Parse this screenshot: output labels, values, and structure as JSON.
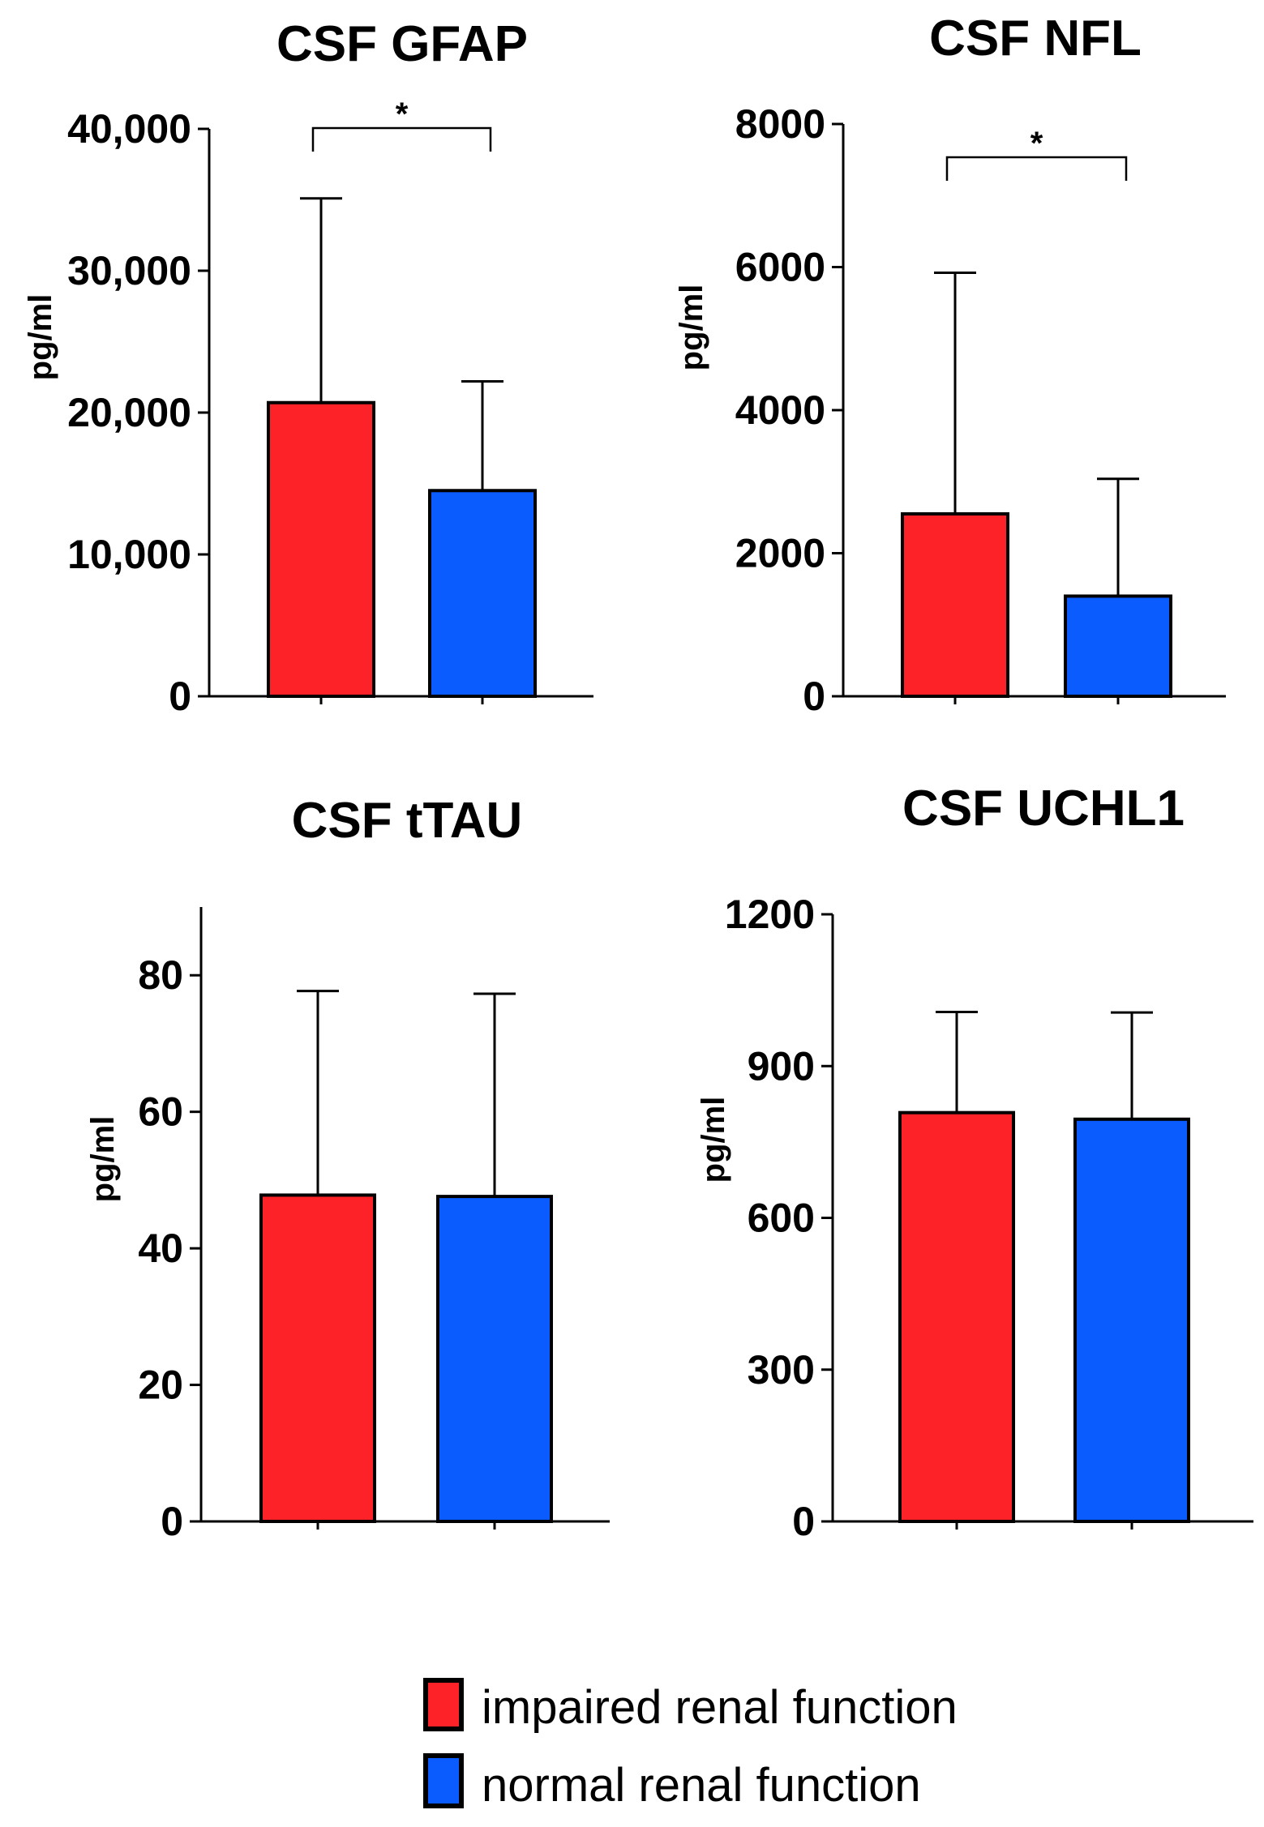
{
  "colors": {
    "impaired": "#fd2128",
    "normal": "#0b5cff",
    "axis": "#000000"
  },
  "legend": {
    "impaired_label": "impaired renal function",
    "normal_label": "normal renal function"
  },
  "chart_data": [
    {
      "type": "bar",
      "title": "CSF GFAP",
      "ylabel": "pg/ml",
      "xlabel": "",
      "ylim": [
        0,
        40000
      ],
      "yticks": [
        0,
        10000,
        20000,
        30000,
        40000
      ],
      "ytick_labels": [
        "0",
        "10,000",
        "20,000",
        "30,000",
        "40,000"
      ],
      "categories": [
        "impaired renal function",
        "normal renal function"
      ],
      "values": [
        20700,
        14500
      ],
      "error_upper": [
        35100,
        22200
      ],
      "significance": {
        "label": "*",
        "from": 0,
        "to": 1
      }
    },
    {
      "type": "bar",
      "title": "CSF NFL",
      "ylabel": "pg/ml",
      "xlabel": "",
      "ylim": [
        0,
        8000
      ],
      "yticks": [
        0,
        2000,
        4000,
        6000,
        8000
      ],
      "ytick_labels": [
        "0",
        "2000",
        "4000",
        "6000",
        "8000"
      ],
      "categories": [
        "impaired renal function",
        "normal renal function"
      ],
      "values": [
        2550,
        1400
      ],
      "error_upper": [
        5920,
        3040
      ],
      "significance": {
        "label": "*",
        "from": 0,
        "to": 1
      }
    },
    {
      "type": "bar",
      "title": "CSF tTAU",
      "ylabel": "pg/ml",
      "xlabel": "",
      "ylim": [
        0,
        90
      ],
      "yticks": [
        0,
        20,
        40,
        60,
        80
      ],
      "ytick_labels": [
        "0",
        "20",
        "40",
        "60",
        "80"
      ],
      "categories": [
        "impaired renal function",
        "normal renal function"
      ],
      "values": [
        47.8,
        47.6
      ],
      "error_upper": [
        77.7,
        77.3
      ],
      "significance": null
    },
    {
      "type": "bar",
      "title": "CSF UCHL1",
      "ylabel": "pg/ml",
      "xlabel": "",
      "ylim": [
        0,
        1200
      ],
      "yticks": [
        0,
        300,
        600,
        900,
        1200
      ],
      "ytick_labels": [
        "0",
        "300",
        "600",
        "900",
        "1200"
      ],
      "categories": [
        "impaired renal function",
        "normal renal function"
      ],
      "values": [
        808,
        795
      ],
      "error_upper": [
        1007,
        1006
      ],
      "significance": null
    }
  ]
}
